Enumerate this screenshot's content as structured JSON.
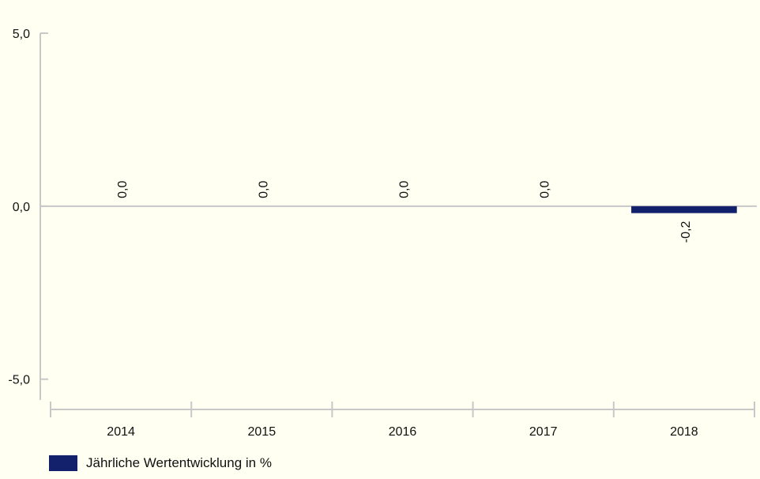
{
  "chart_data": {
    "type": "bar",
    "categories": [
      "2014",
      "2015",
      "2016",
      "2017",
      "2018"
    ],
    "series": [
      {
        "name": "Jährliche Wertentwicklung in %",
        "values": [
          0.0,
          0.0,
          0.0,
          0.0,
          -0.2
        ],
        "data_labels": [
          "0,0",
          "0,0",
          "0,0",
          "0,0",
          "-0,2"
        ],
        "color": "#13206b"
      }
    ],
    "yticks": [
      5.0,
      0.0,
      -5.0
    ],
    "ytick_labels": [
      "5,0",
      "0,0",
      "-5,0"
    ],
    "ylim": [
      -5.6,
      5.0
    ],
    "title": "",
    "xlabel": "",
    "ylabel": "",
    "grid": false,
    "legend_position": "bottom-left"
  },
  "colors": {
    "background": "#fffff2",
    "axis": "#c8c8c8",
    "text": "#111111"
  }
}
